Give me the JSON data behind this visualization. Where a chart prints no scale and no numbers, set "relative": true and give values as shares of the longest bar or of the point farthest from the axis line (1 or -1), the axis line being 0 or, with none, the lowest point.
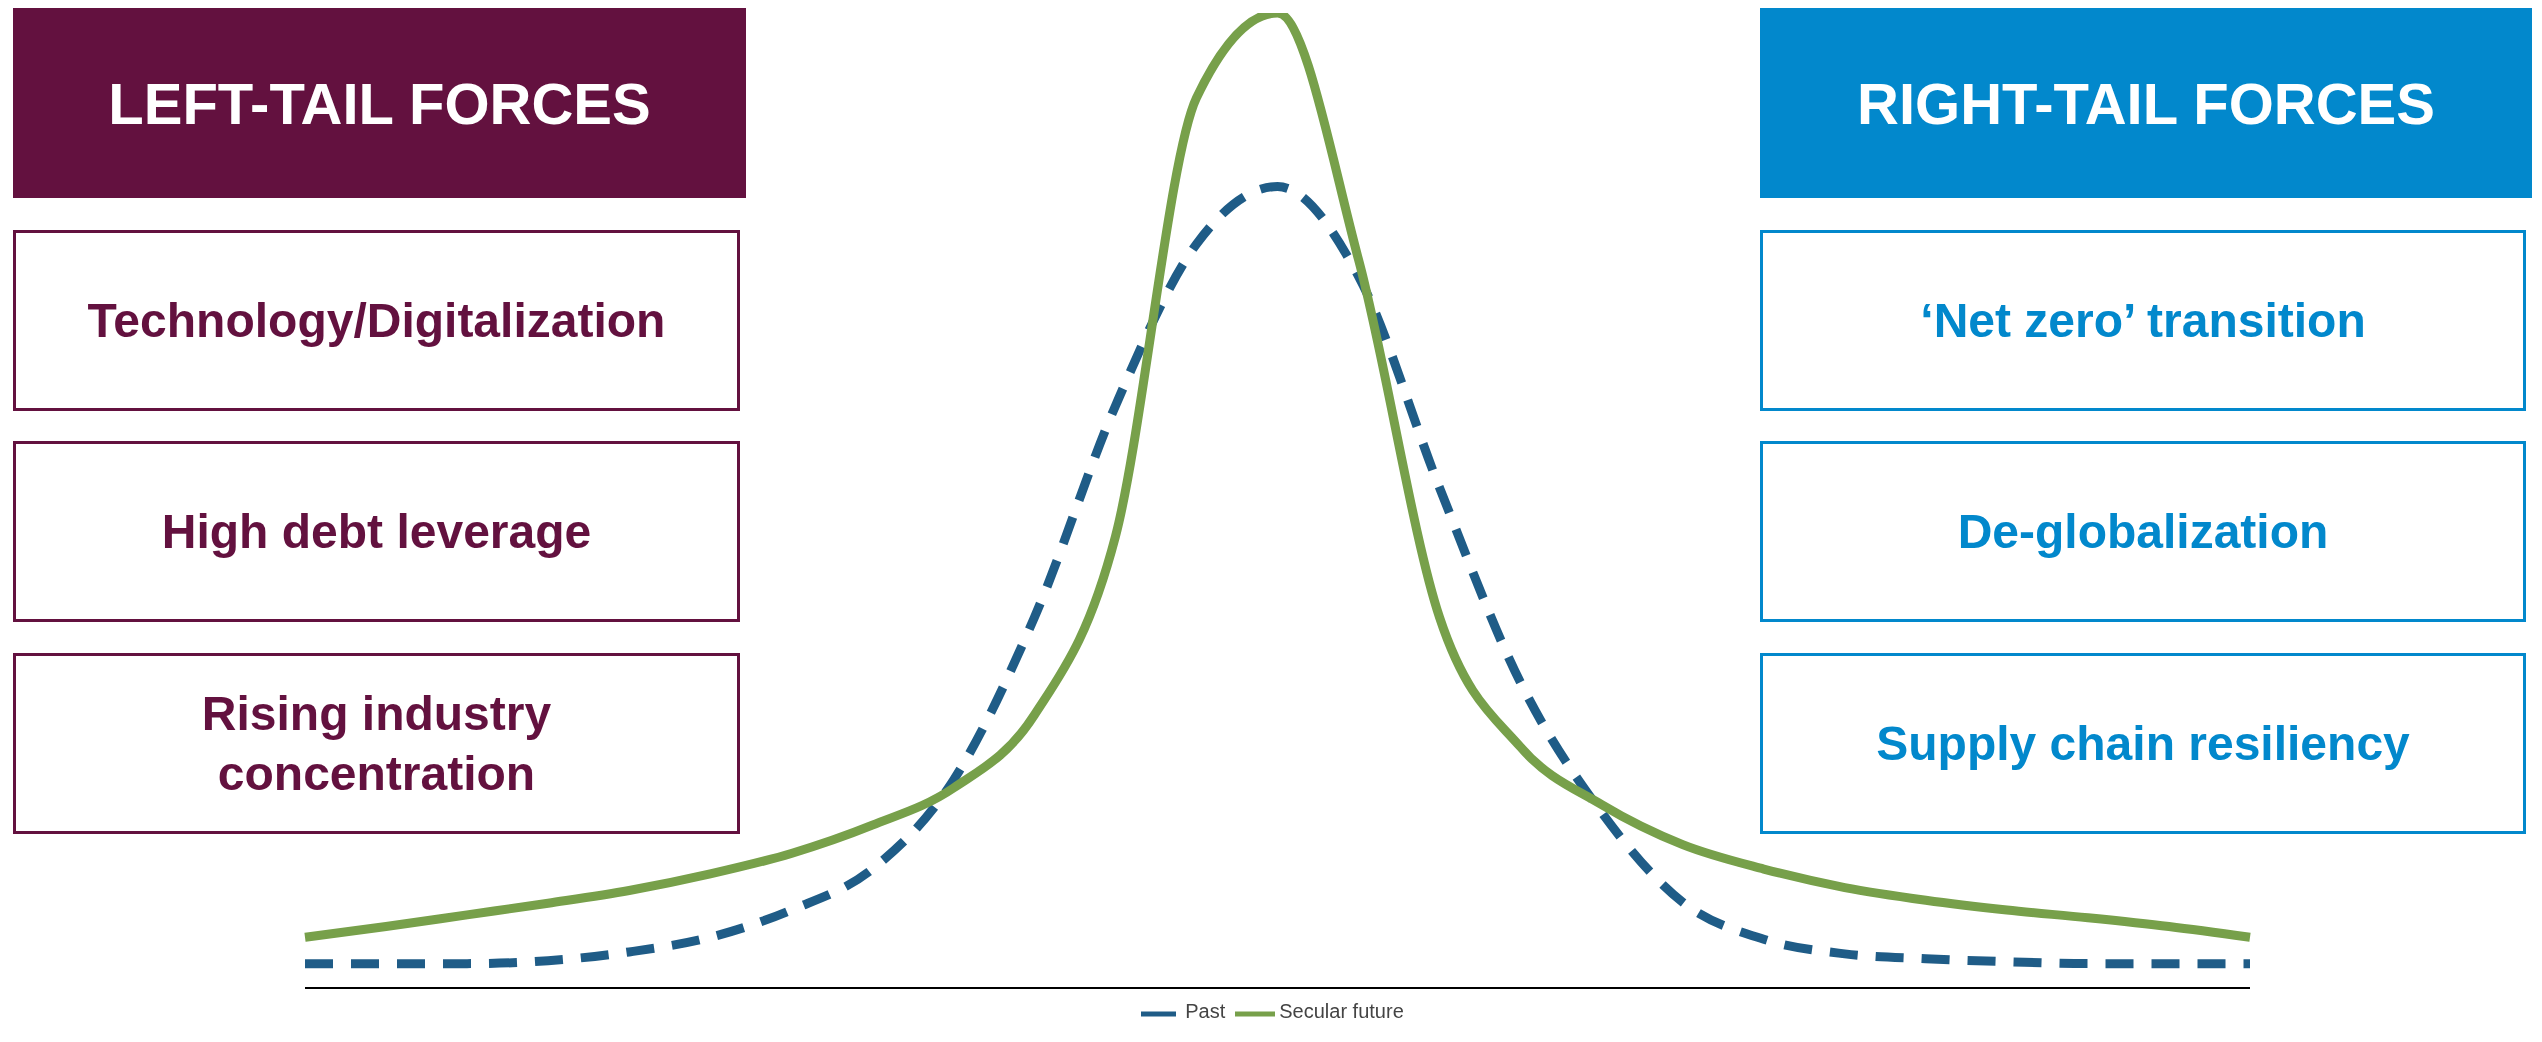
{
  "chart_data": {
    "type": "line",
    "relative": true,
    "marker": "none",
    "legend": "bottom",
    "grid": false,
    "categories": [
      null,
      null,
      null,
      null,
      null,
      null,
      null,
      null,
      null,
      null,
      null,
      null,
      null,
      null,
      null,
      null,
      null,
      null,
      null,
      null,
      null,
      null,
      null,
      null,
      null
    ],
    "series": [
      {
        "name": "Past",
        "color": "#1f5c87",
        "line_style": "dashed",
        "values": [
          0.025,
          0.025,
          0.025,
          0.028,
          0.037,
          0.052,
          0.08,
          0.122,
          0.213,
          0.38,
          0.597,
          0.763,
          0.822,
          0.73,
          0.513,
          0.313,
          0.18,
          0.088,
          0.05,
          0.035,
          0.03,
          0.027,
          0.025,
          0.025,
          0.025
        ]
      },
      {
        "name": "Secular future",
        "color": "#77a04a",
        "line_style": "solid",
        "values": [
          0.052,
          0.063,
          0.075,
          0.087,
          0.1,
          0.117,
          0.138,
          0.167,
          0.205,
          0.28,
          0.463,
          0.913,
          1,
          0.747,
          0.38,
          0.247,
          0.188,
          0.147,
          0.122,
          0.103,
          0.09,
          0.08,
          0.072,
          0.063,
          0.052
        ]
      }
    ],
    "annotations": [
      "LEFT-TAIL FORCES",
      "Technology/Digitalization",
      "High debt leverage",
      "Rising industry concentration",
      "RIGHT-TAIL FORCES",
      "‘Net zero’ transition",
      "De-globalization",
      "Supply chain resiliency"
    ]
  }
}
